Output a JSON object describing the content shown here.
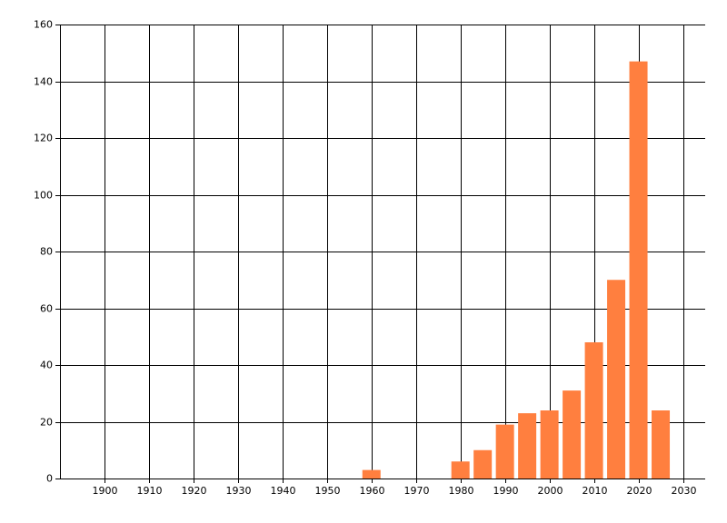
{
  "chart_data": {
    "type": "bar",
    "x": [
      1960,
      1980,
      1985,
      1990,
      1995,
      2000,
      2005,
      2010,
      2015,
      2020,
      2025
    ],
    "values": [
      3,
      6,
      10,
      19,
      23,
      24,
      31,
      48,
      70,
      147,
      24
    ],
    "color": "#ff7f3f",
    "xlim": [
      1890,
      2035
    ],
    "xticks": [
      1900,
      1910,
      1920,
      1930,
      1940,
      1950,
      1960,
      1970,
      1980,
      1990,
      2000,
      2010,
      2020,
      2030
    ],
    "ylim": [
      0,
      160
    ],
    "yticks": [
      0,
      20,
      40,
      60,
      80,
      100,
      120,
      140,
      160
    ],
    "grid": true
  }
}
